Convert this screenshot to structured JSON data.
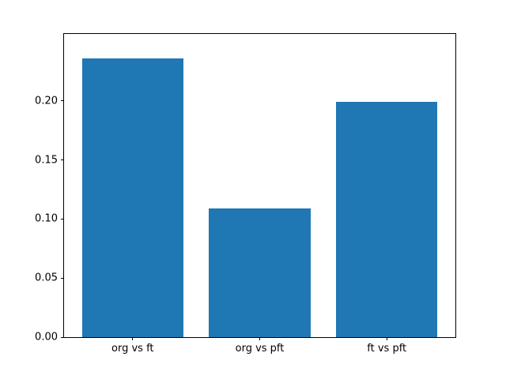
{
  "chart_data": {
    "type": "bar",
    "title": "",
    "xlabel": "",
    "ylabel": "",
    "categories": [
      "org vs ft",
      "org vs pft",
      "ft vs pft"
    ],
    "values": [
      0.236,
      0.109,
      0.199
    ],
    "yticks": [
      0,
      0.05,
      0.1,
      0.15,
      0.2
    ],
    "ylim": [
      0,
      0.2567
    ],
    "xlim": [
      -0.54,
      2.54
    ],
    "bar_width": 0.8,
    "bar_color": "#1f77b4",
    "spine_color": "#000000",
    "background": "#ffffff",
    "grid": false,
    "legend": false
  }
}
